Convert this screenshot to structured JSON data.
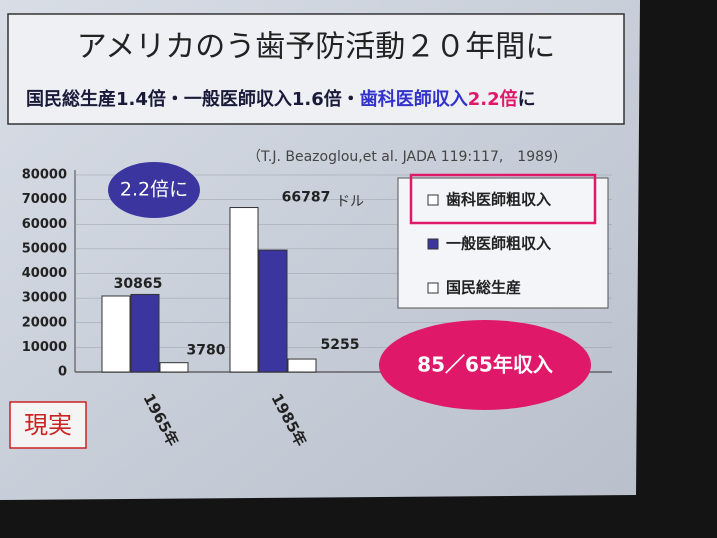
{
  "chart_data": {
    "type": "bar",
    "title": "アメリカのう歯予防活動２０年間に",
    "subtitle": [
      {
        "text": "国民総生産1.4倍・一般医師収入1.6倍・",
        "color": "#1a1a3a"
      },
      {
        "text": "歯科医師収入",
        "color": "#3333cc"
      },
      {
        "text": "2.2倍",
        "color": "#e0186a"
      },
      {
        "text": "に",
        "color": "#1a1a3a"
      }
    ],
    "citation": "（T.J. Beazoglou,et al. JADA 119:117,　1989)",
    "unit_label": "ドル",
    "callout_ratio": "2.2倍に",
    "callout_period": "85／65年収入",
    "reality_label": "現実",
    "categories": [
      "1965年",
      "1985年"
    ],
    "series": [
      {
        "name": "歯科医師粗収入",
        "color": "#ffffff",
        "values": [
          30865,
          66787
        ],
        "show_labels": true
      },
      {
        "name": "一般医師粗収入",
        "color": "#3b35a0",
        "values": [
          31500,
          49500
        ],
        "show_labels": false
      },
      {
        "name": "国民総生産",
        "color": "#ffffff",
        "values": [
          3780,
          5255
        ],
        "show_labels": true
      }
    ],
    "ylim": [
      0,
      80000
    ],
    "yticks": [
      0,
      10000,
      20000,
      30000,
      40000,
      50000,
      60000,
      70000,
      80000
    ],
    "highlighted_legend_entry": 0
  }
}
